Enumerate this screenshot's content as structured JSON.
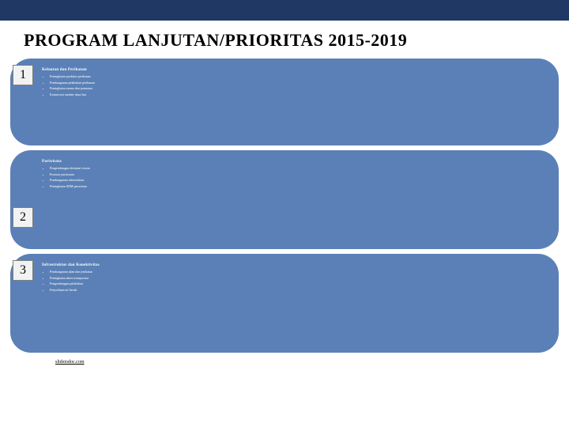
{
  "page": {
    "background_color": "#ffffff",
    "top_bar_color": "#1f3864",
    "title": "PROGRAM LANJUTAN/PRIORITAS 2015-2019",
    "title_fontsize": 22,
    "title_color": "#000000"
  },
  "panels": {
    "fill_color": "#5b80b7",
    "border_radius": 26,
    "text_color": "#ffffff",
    "subtitle_fontsize": 5,
    "body_fontsize": 4
  },
  "num_box": {
    "background": "#f2f2f2",
    "border": "#7f7f7f",
    "font": "Georgia",
    "fontsize": 16
  },
  "items": [
    {
      "number": "1",
      "subtitle": "Kelautan dan Perikanan",
      "bullets": [
        "Peningkatan produksi perikanan",
        "Pembangunan pelabuhan perikanan",
        "Peningkatan sarana dan prasarana",
        "Konservasi sumber daya laut"
      ]
    },
    {
      "number": "2",
      "subtitle": "Pariwisata",
      "bullets": [
        "Pengembangan destinasi wisata",
        "Promosi pariwisata",
        "Pembangunan infrastruktur",
        "Peningkatan SDM pariwisata"
      ]
    },
    {
      "number": "3",
      "subtitle": "Infrastruktur dan Konektivitas",
      "bullets": [
        "Pembangunan jalan dan jembatan",
        "Peningkatan akses transportasi",
        "Pengembangan pelabuhan",
        "Penyediaan air bersih"
      ]
    }
  ],
  "footer": {
    "link_text": "slidetodoc.com",
    "fontsize": 6,
    "color": "#000000"
  }
}
